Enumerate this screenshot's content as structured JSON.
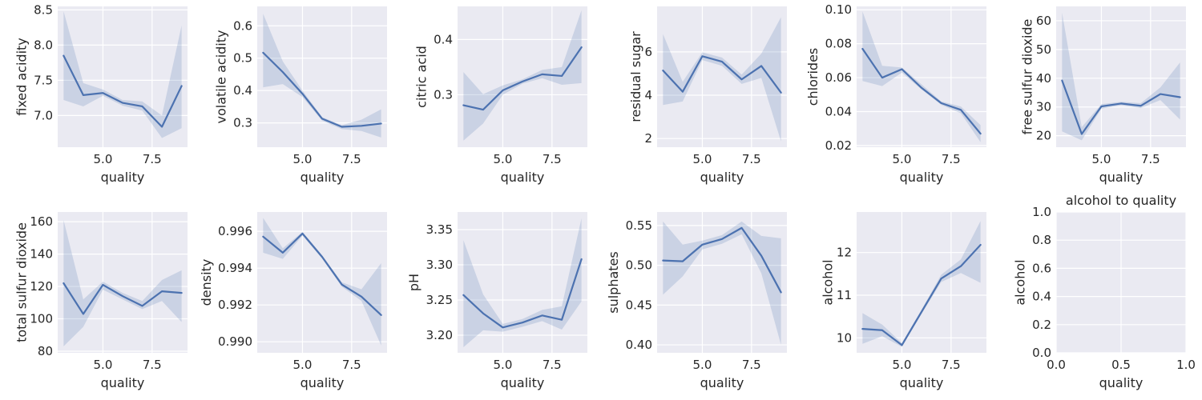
{
  "figure": {
    "background": "#ffffff",
    "axes_face": "#eaeaf2",
    "grid_color": "#ffffff",
    "line_color": "#4c72b0",
    "band_color": "#4c72b0",
    "band_opacity": 0.2
  },
  "chart_data": [
    {
      "type": "line",
      "xlabel": "quality",
      "ylabel": "fixed acidity",
      "title": "",
      "x": [
        3,
        4,
        5,
        6,
        7,
        8,
        9
      ],
      "xlim": [
        2.7,
        9.3
      ],
      "xticks": [
        5.0,
        7.5
      ],
      "xtick_labels": [
        "5.0",
        "7.5"
      ],
      "ylim": [
        6.55,
        8.55
      ],
      "yticks": [
        7.0,
        7.5,
        8.0,
        8.5
      ],
      "ytick_labels": [
        "7.0",
        "7.5",
        "8.0",
        "8.5"
      ],
      "series": [
        {
          "values": [
            7.85,
            7.29,
            7.32,
            7.18,
            7.13,
            6.84,
            7.42
          ],
          "ci_low": [
            7.22,
            7.13,
            7.28,
            7.14,
            7.07,
            6.68,
            6.82
          ],
          "ci_high": [
            8.48,
            7.46,
            7.37,
            7.22,
            7.2,
            7.0,
            8.28
          ]
        }
      ]
    },
    {
      "type": "line",
      "xlabel": "quality",
      "ylabel": "volatile acidity",
      "title": "",
      "x": [
        3,
        4,
        5,
        6,
        7,
        8,
        9
      ],
      "xlim": [
        2.7,
        9.3
      ],
      "xticks": [
        5.0,
        7.5
      ],
      "xtick_labels": [
        "5.0",
        "7.5"
      ],
      "ylim": [
        0.225,
        0.66
      ],
      "yticks": [
        0.3,
        0.4,
        0.5,
        0.6
      ],
      "ytick_labels": [
        "0.3",
        "0.4",
        "0.5",
        "0.6"
      ],
      "series": [
        {
          "values": [
            0.517,
            0.457,
            0.39,
            0.313,
            0.288,
            0.291,
            0.298
          ],
          "ci_low": [
            0.41,
            0.42,
            0.38,
            0.307,
            0.281,
            0.275,
            0.255
          ],
          "ci_high": [
            0.637,
            0.49,
            0.4,
            0.318,
            0.293,
            0.31,
            0.342
          ]
        }
      ]
    },
    {
      "type": "line",
      "xlabel": "quality",
      "ylabel": "citric acid",
      "title": "",
      "x": [
        3,
        4,
        5,
        6,
        7,
        8,
        9
      ],
      "xlim": [
        2.7,
        9.3
      ],
      "xticks": [
        5.0,
        7.5
      ],
      "xtick_labels": [
        "5.0",
        "7.5"
      ],
      "ylim": [
        0.205,
        0.46
      ],
      "yticks": [
        0.3,
        0.4
      ],
      "ytick_labels": [
        "0.3",
        "0.4"
      ],
      "series": [
        {
          "values": [
            0.281,
            0.273,
            0.308,
            0.324,
            0.337,
            0.334,
            0.386
          ],
          "ci_low": [
            0.217,
            0.248,
            0.3,
            0.32,
            0.33,
            0.318,
            0.321
          ],
          "ci_high": [
            0.341,
            0.301,
            0.317,
            0.328,
            0.345,
            0.35,
            0.453
          ]
        }
      ]
    },
    {
      "type": "line",
      "xlabel": "quality",
      "ylabel": "residual sugar",
      "title": "",
      "x": [
        3,
        4,
        5,
        6,
        7,
        8,
        9
      ],
      "xlim": [
        2.7,
        9.3
      ],
      "xticks": [
        5.0,
        7.5
      ],
      "xtick_labels": [
        "5.0",
        "7.5"
      ],
      "ylim": [
        1.6,
        8.1
      ],
      "yticks": [
        2,
        4,
        6
      ],
      "ytick_labels": [
        "2",
        "4",
        "6"
      ],
      "series": [
        {
          "values": [
            5.14,
            4.16,
            5.8,
            5.55,
            4.73,
            5.35,
            4.12
          ],
          "ci_low": [
            3.55,
            3.71,
            5.62,
            5.36,
            4.52,
            4.8,
            1.87
          ],
          "ci_high": [
            6.82,
            4.62,
            5.98,
            5.74,
            4.95,
            5.92,
            7.6
          ]
        }
      ]
    },
    {
      "type": "line",
      "xlabel": "quality",
      "ylabel": "chlorides",
      "title": "",
      "x": [
        3,
        4,
        5,
        6,
        7,
        8,
        9
      ],
      "xlim": [
        2.7,
        9.3
      ],
      "xticks": [
        5.0,
        7.5
      ],
      "xtick_labels": [
        "5.0",
        "7.5"
      ],
      "ylim": [
        0.019,
        0.102
      ],
      "yticks": [
        0.02,
        0.04,
        0.06,
        0.08,
        0.1
      ],
      "ytick_labels": [
        "0.02",
        "0.04",
        "0.06",
        "0.08",
        "0.10"
      ],
      "series": [
        {
          "values": [
            0.077,
            0.06,
            0.065,
            0.054,
            0.045,
            0.041,
            0.027
          ],
          "ci_low": [
            0.058,
            0.055,
            0.063,
            0.053,
            0.044,
            0.039,
            0.022
          ],
          "ci_high": [
            0.099,
            0.067,
            0.066,
            0.056,
            0.046,
            0.043,
            0.032
          ]
        }
      ]
    },
    {
      "type": "line",
      "xlabel": "quality",
      "ylabel": "free sulfur dioxide",
      "title": "",
      "x": [
        3,
        4,
        5,
        6,
        7,
        8,
        9
      ],
      "xlim": [
        2.7,
        9.3
      ],
      "xticks": [
        5.0,
        7.5
      ],
      "xtick_labels": [
        "5.0",
        "7.5"
      ],
      "ylim": [
        16,
        65
      ],
      "yticks": [
        20,
        30,
        40,
        50,
        60
      ],
      "ytick_labels": [
        "20",
        "30",
        "40",
        "50",
        "60"
      ],
      "series": [
        {
          "values": [
            39.2,
            20.6,
            30.2,
            31.2,
            30.4,
            34.5,
            33.4
          ],
          "ci_low": [
            21.5,
            18.4,
            29.4,
            30.6,
            29.6,
            32.4,
            25.6
          ],
          "ci_high": [
            62.8,
            23.0,
            31.0,
            31.8,
            31.3,
            36.8,
            45.5
          ]
        }
      ]
    },
    {
      "type": "line",
      "xlabel": "quality",
      "ylabel": "total sulfur dioxide",
      "title": "",
      "x": [
        3,
        4,
        5,
        6,
        7,
        8,
        9
      ],
      "xlim": [
        2.7,
        9.3
      ],
      "xticks": [
        5.0,
        7.5
      ],
      "xtick_labels": [
        "5.0",
        "7.5"
      ],
      "ylim": [
        79,
        166
      ],
      "yticks": [
        80,
        100,
        120,
        140,
        160
      ],
      "ytick_labels": [
        "80",
        "100",
        "120",
        "140",
        "160"
      ],
      "series": [
        {
          "values": [
            122,
            103,
            121,
            114,
            108,
            117,
            116
          ],
          "ci_low": [
            83,
            95,
            118,
            112,
            106,
            111,
            98
          ],
          "ci_high": [
            161,
            112,
            123,
            116,
            111,
            124,
            130
          ]
        }
      ]
    },
    {
      "type": "line",
      "xlabel": "quality",
      "ylabel": "density",
      "title": "",
      "x": [
        3,
        4,
        5,
        6,
        7,
        8,
        9
      ],
      "xlim": [
        2.7,
        9.3
      ],
      "xticks": [
        5.0,
        7.5
      ],
      "xtick_labels": [
        "5.0",
        "7.5"
      ],
      "ylim": [
        0.9894,
        0.99705
      ],
      "yticks": [
        0.99,
        0.992,
        0.994,
        0.996
      ],
      "ytick_labels": [
        "0.990",
        "0.992",
        "0.994",
        "0.996"
      ],
      "series": [
        {
          "values": [
            0.99571,
            0.99484,
            0.99588,
            0.99461,
            0.99311,
            0.99245,
            0.99145
          ],
          "ci_low": [
            0.99484,
            0.9945,
            0.99577,
            0.99452,
            0.99299,
            0.99222,
            0.9898
          ],
          "ci_high": [
            0.99673,
            0.99508,
            0.99597,
            0.9947,
            0.99323,
            0.99285,
            0.99427
          ]
        }
      ]
    },
    {
      "type": "line",
      "xlabel": "quality",
      "ylabel": "pH",
      "title": "",
      "x": [
        3,
        4,
        5,
        6,
        7,
        8,
        9
      ],
      "xlim": [
        2.7,
        9.3
      ],
      "xticks": [
        5.0,
        7.5
      ],
      "xtick_labels": [
        "5.0",
        "7.5"
      ],
      "ylim": [
        3.175,
        3.375
      ],
      "yticks": [
        3.2,
        3.25,
        3.3,
        3.35
      ],
      "ytick_labels": [
        "3.20",
        "3.25",
        "3.30",
        "3.35"
      ],
      "series": [
        {
          "values": [
            3.257,
            3.231,
            3.211,
            3.218,
            3.228,
            3.222,
            3.308
          ],
          "ci_low": [
            3.183,
            3.207,
            3.205,
            3.212,
            3.22,
            3.208,
            3.248
          ],
          "ci_high": [
            3.335,
            3.258,
            3.216,
            3.223,
            3.236,
            3.241,
            3.366
          ]
        }
      ]
    },
    {
      "type": "line",
      "xlabel": "quality",
      "ylabel": "sulphates",
      "title": "",
      "x": [
        3,
        4,
        5,
        6,
        7,
        8,
        9
      ],
      "xlim": [
        2.7,
        9.3
      ],
      "xticks": [
        5.0,
        7.5
      ],
      "xtick_labels": [
        "5.0",
        "7.5"
      ],
      "ylim": [
        0.39,
        0.567
      ],
      "yticks": [
        0.4,
        0.45,
        0.5,
        0.55
      ],
      "ytick_labels": [
        "0.40",
        "0.45",
        "0.50",
        "0.55"
      ],
      "series": [
        {
          "values": [
            0.506,
            0.505,
            0.526,
            0.533,
            0.547,
            0.512,
            0.466
          ],
          "ci_low": [
            0.463,
            0.486,
            0.52,
            0.527,
            0.539,
            0.49,
            0.4
          ],
          "ci_high": [
            0.555,
            0.526,
            0.531,
            0.538,
            0.555,
            0.537,
            0.534
          ]
        }
      ]
    },
    {
      "type": "line",
      "xlabel": "quality",
      "ylabel": "alcohol",
      "title": "",
      "x": [
        3,
        4,
        5,
        6,
        7,
        8,
        9
      ],
      "xlim": [
        2.7,
        9.3
      ],
      "xticks": [
        5.0,
        7.5
      ],
      "xtick_labels": [
        "5.0",
        "7.5"
      ],
      "ylim": [
        9.65,
        12.95
      ],
      "yticks": [
        10,
        11,
        12
      ],
      "ytick_labels": [
        "10",
        "11",
        "12"
      ],
      "series": [
        {
          "values": [
            10.21,
            10.18,
            9.83,
            10.61,
            11.39,
            11.68,
            12.18
          ],
          "ci_low": [
            9.86,
            10.04,
            9.79,
            10.56,
            11.31,
            11.52,
            11.29
          ],
          "ci_high": [
            10.58,
            10.31,
            9.88,
            10.66,
            11.48,
            11.84,
            12.74
          ]
        }
      ]
    },
    {
      "type": "line",
      "xlabel": "quality",
      "ylabel": "alcohol",
      "title": "alcohol to quality",
      "x": [],
      "xlim": [
        0,
        1
      ],
      "xticks": [
        0.0,
        0.5,
        1.0
      ],
      "xtick_labels": [
        "0.0",
        "0.5",
        "1.0"
      ],
      "ylim": [
        0,
        1
      ],
      "yticks": [
        0.0,
        0.2,
        0.4,
        0.6,
        0.8,
        1.0
      ],
      "ytick_labels": [
        "0.0",
        "0.2",
        "0.4",
        "0.6",
        "0.8",
        "1.0"
      ],
      "series": []
    }
  ]
}
